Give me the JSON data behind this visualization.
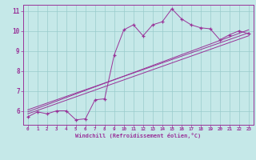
{
  "xlabel": "Windchill (Refroidissement éolien,°C)",
  "bg_color": "#c5e8e8",
  "line_color": "#993399",
  "grid_color": "#99cccc",
  "xlim": [
    -0.5,
    23.5
  ],
  "ylim": [
    5.3,
    11.3
  ],
  "xticks": [
    0,
    1,
    2,
    3,
    4,
    5,
    6,
    7,
    8,
    9,
    10,
    11,
    12,
    13,
    14,
    15,
    16,
    17,
    18,
    19,
    20,
    21,
    22,
    23
  ],
  "yticks": [
    6,
    7,
    8,
    9,
    10,
    11
  ],
  "data_x": [
    0,
    1,
    2,
    3,
    4,
    5,
    6,
    7,
    8,
    9,
    10,
    11,
    12,
    13,
    14,
    15,
    16,
    17,
    18,
    19,
    20,
    21,
    22,
    23
  ],
  "data_y": [
    5.7,
    5.95,
    5.85,
    6.0,
    6.0,
    5.55,
    5.6,
    6.55,
    6.6,
    8.8,
    10.05,
    10.3,
    9.75,
    10.3,
    10.45,
    11.1,
    10.6,
    10.3,
    10.15,
    10.1,
    9.55,
    9.8,
    10.0,
    9.85
  ],
  "trend1_x": [
    0,
    23
  ],
  "trend1_y": [
    6.05,
    9.9
  ],
  "trend2_x": [
    0,
    23
  ],
  "trend2_y": [
    5.85,
    9.75
  ],
  "trend3_x": [
    0,
    23
  ],
  "trend3_y": [
    5.95,
    10.05
  ]
}
